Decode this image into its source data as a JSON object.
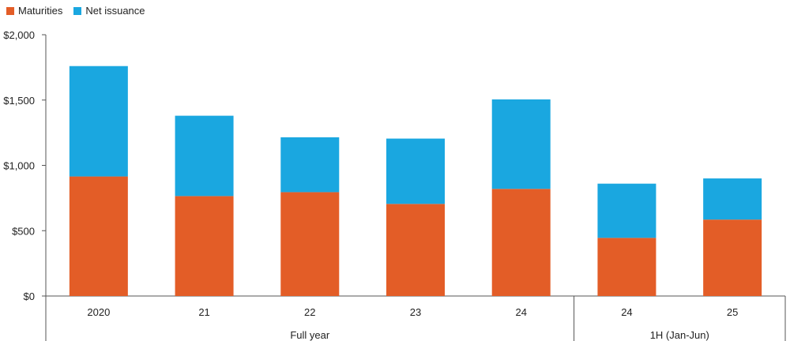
{
  "chart_data": {
    "type": "bar",
    "stacked": true,
    "categories": [
      "2020",
      "21",
      "22",
      "23",
      "24",
      "24",
      "25"
    ],
    "groups": [
      {
        "label": "Full year",
        "categories": [
          "2020",
          "21",
          "22",
          "23",
          "24"
        ]
      },
      {
        "label": "1H (Jan-Jun)",
        "categories": [
          "24",
          "25"
        ]
      }
    ],
    "series": [
      {
        "name": "Maturities",
        "color": "#e35d27",
        "values": [
          915,
          765,
          795,
          705,
          820,
          445,
          585
        ]
      },
      {
        "name": "Net issuance",
        "color": "#1aa7e0",
        "values": [
          845,
          615,
          420,
          500,
          685,
          415,
          315
        ]
      }
    ],
    "y_tick_labels": [
      "$0",
      "$500",
      "$1,000",
      "$1,500",
      "$2,000"
    ],
    "y_ticks": [
      0,
      500,
      1000,
      1500,
      2000
    ],
    "ylim": [
      0,
      2000
    ],
    "legend": "top-left",
    "grid": false
  }
}
